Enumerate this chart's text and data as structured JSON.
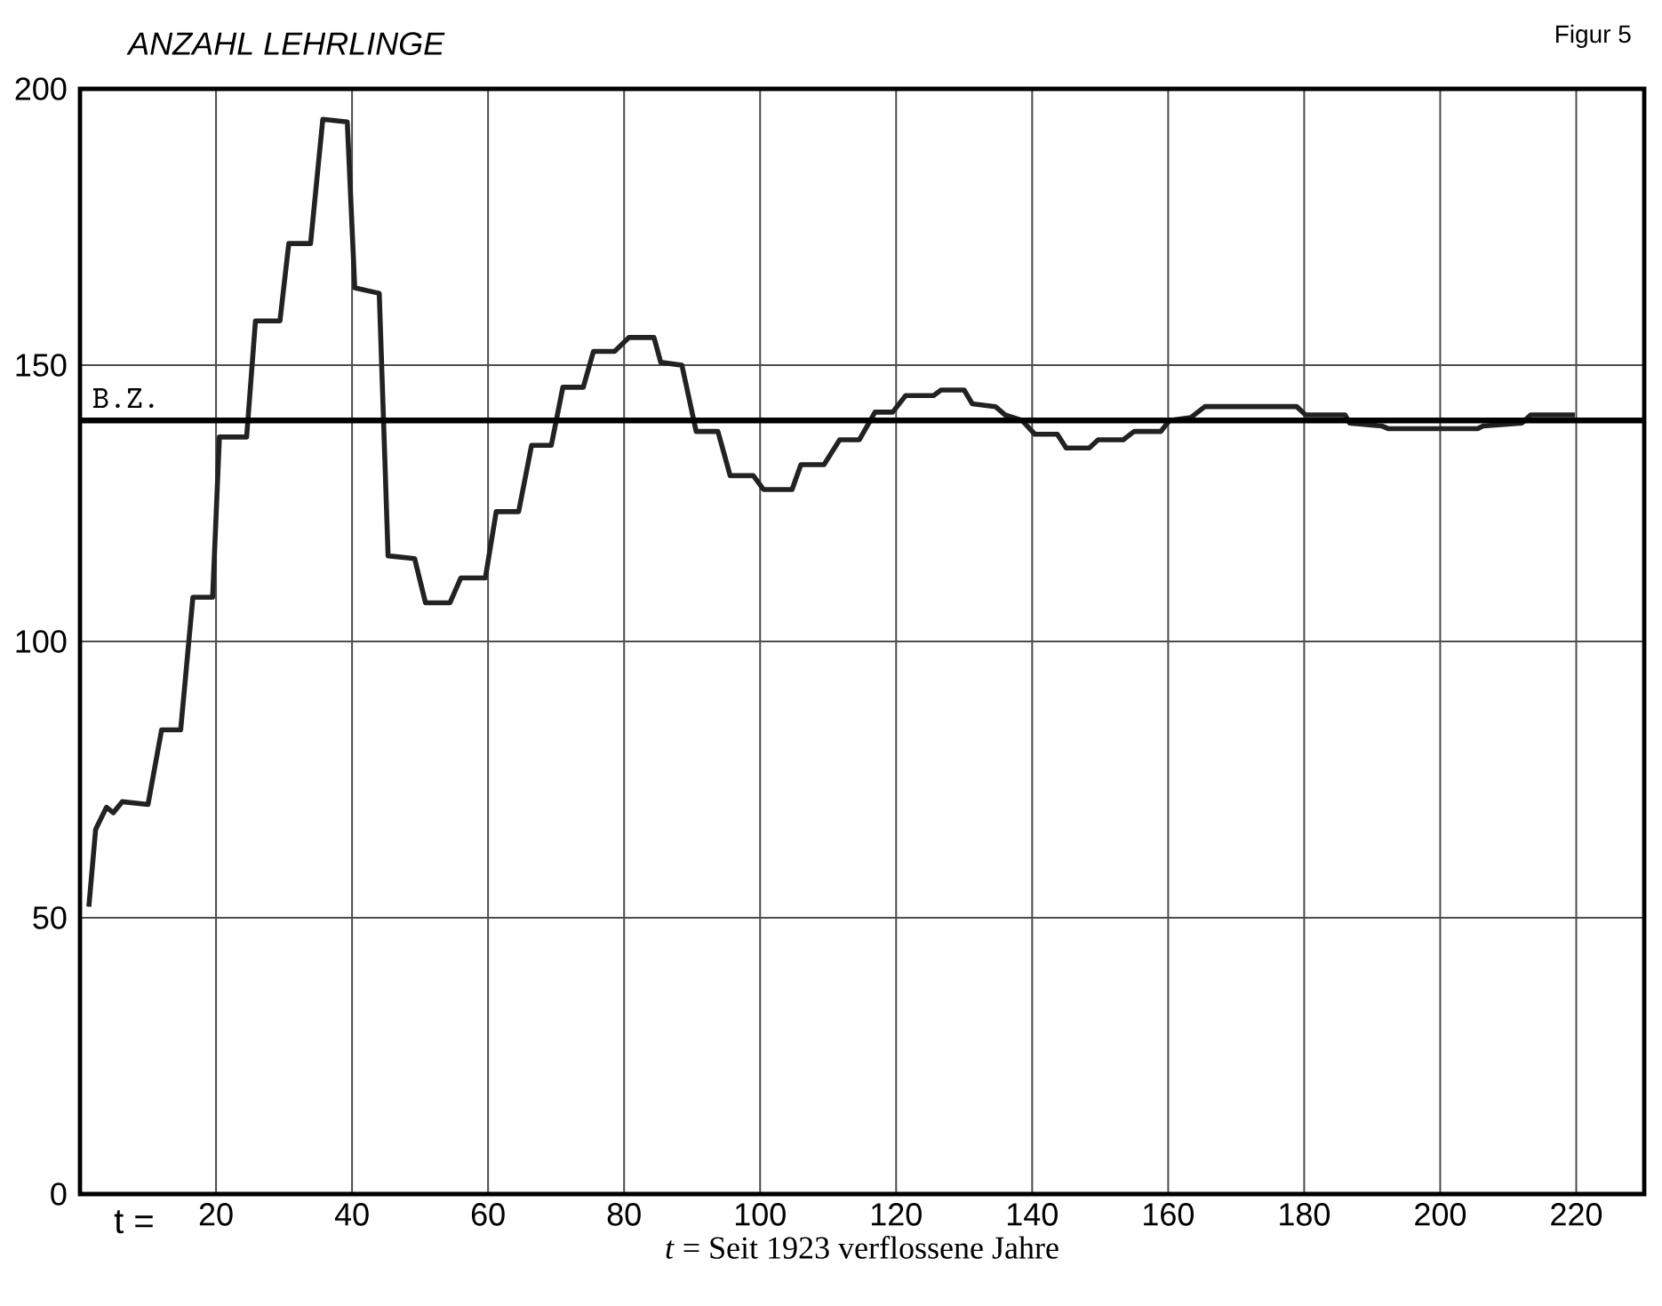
{
  "chart_data": {
    "type": "line",
    "ylabel": "ANZAHL LEHRLINGE",
    "xlabel": "*t* = Seit 1923 verflossene Jahre",
    "annotations": [
      "Figur 5",
      "t ="
    ],
    "xlim": [
      0,
      230
    ],
    "ylim": [
      0,
      200
    ],
    "xticks": [
      20,
      40,
      60,
      80,
      100,
      120,
      140,
      160,
      180,
      200,
      220
    ],
    "yticks": [
      0,
      50,
      100,
      150,
      200
    ],
    "grid": true,
    "marker": "none",
    "line_style": "solid",
    "ref_lines": [
      {
        "axis": "y",
        "value": 140,
        "label": "B.Z."
      }
    ],
    "series": [
      {
        "color": "#222222",
        "x": [
          1.3,
          2.3,
          3.9,
          4.9,
          6.2,
          10,
          12,
          14.8,
          16.6,
          19.5,
          20.5,
          24.5,
          25.8,
          29.4,
          30.7,
          33.9,
          35.7,
          39.3,
          40.4,
          44,
          45.3,
          49.2,
          50.8,
          54.4,
          56,
          59.6,
          61.2,
          64.5,
          66.4,
          69.3,
          71,
          74,
          75.5,
          78.6,
          80.7,
          84.4,
          85.4,
          88.5,
          90.6,
          93.8,
          95.6,
          99,
          100.5,
          104.7,
          106,
          109.4,
          111.7,
          114.6,
          116.9,
          119.5,
          121.4,
          125.5,
          126.6,
          130,
          131.2,
          134.6,
          136,
          138.5,
          140.4,
          143.7,
          145,
          148.4,
          149.7,
          153.4,
          155,
          158.9,
          160.2,
          163.3,
          165.4,
          178.9,
          180.2,
          186,
          186.7,
          191.4,
          192.4,
          205.5,
          206.3,
          212,
          213.3,
          219.8
        ],
        "values": [
          52,
          66,
          70,
          69,
          71,
          70.5,
          84,
          84,
          108,
          108,
          137,
          137,
          158,
          158,
          172,
          172,
          194.5,
          194,
          164,
          163,
          115.5,
          115,
          107,
          107,
          111.5,
          111.5,
          123.5,
          123.5,
          135.5,
          135.5,
          146,
          146,
          152.5,
          152.5,
          155,
          155,
          150.5,
          150,
          138,
          138,
          130,
          130,
          127.5,
          127.5,
          132,
          132,
          136.5,
          136.5,
          141.5,
          141.5,
          144.5,
          144.5,
          145.5,
          145.5,
          143,
          142.5,
          141,
          140,
          137.5,
          137.5,
          135,
          135,
          136.5,
          136.5,
          138,
          138,
          140,
          140.5,
          142.5,
          142.5,
          141,
          141,
          139.5,
          139,
          138.5,
          138.5,
          139,
          139.5,
          141,
          141
        ]
      }
    ]
  }
}
